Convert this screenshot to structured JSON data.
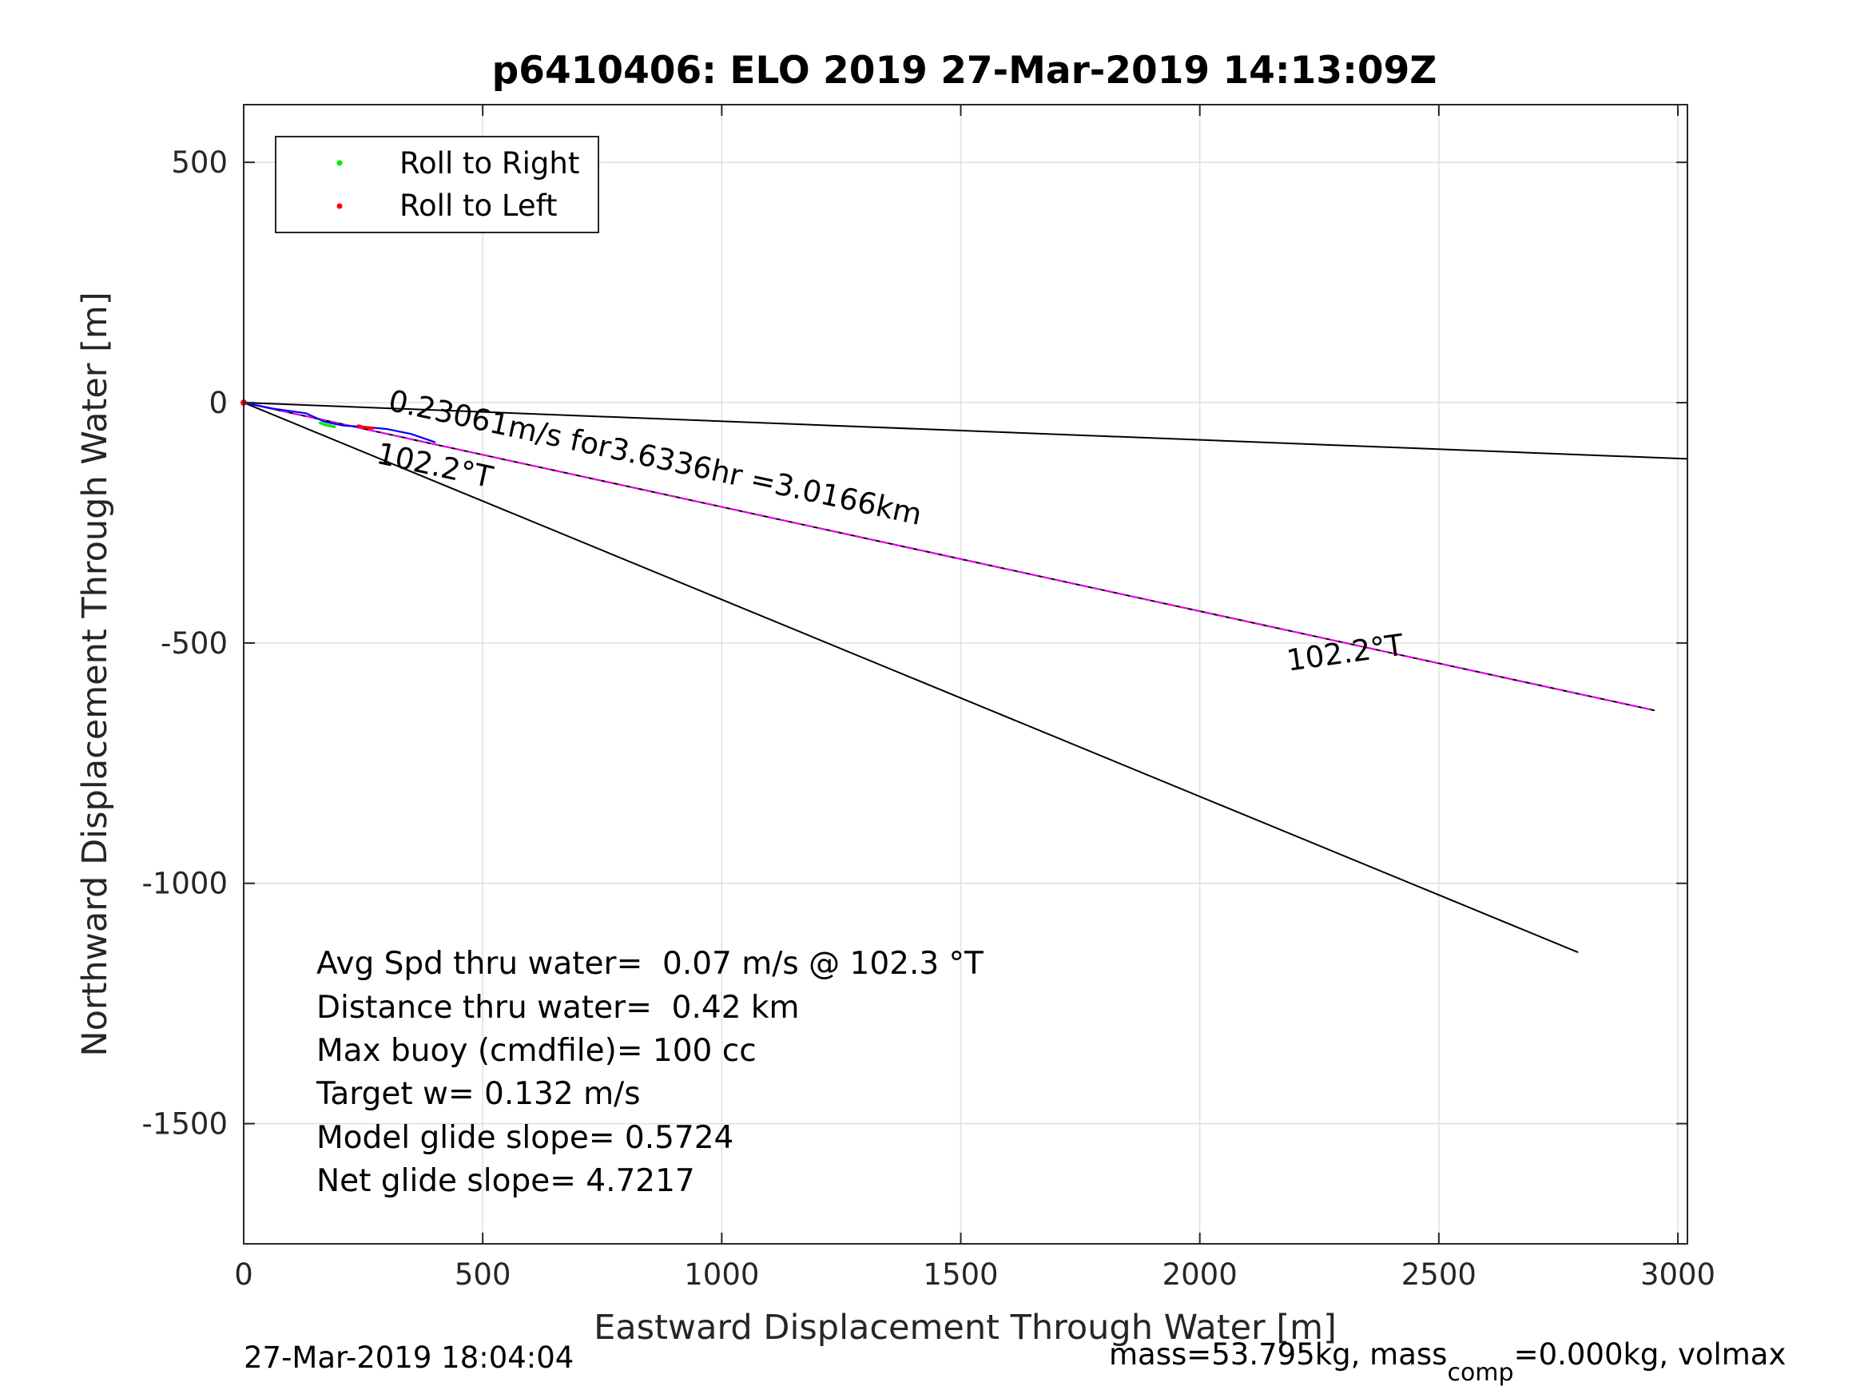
{
  "chart_data": {
    "type": "line",
    "title": "p6410406: ELO 2019 27-Mar-2019 14:13:09Z",
    "xlabel": "Eastward Displacement Through Water [m]",
    "ylabel": "Northward Displacement Through Water [m]",
    "xlim": [
      0,
      3020
    ],
    "ylim": [
      -1750,
      620
    ],
    "grid": true,
    "x_ticks": [
      0,
      500,
      1000,
      1500,
      2000,
      2500,
      3000
    ],
    "x_tick_labels": [
      "0",
      "500",
      "1000",
      "1500",
      "2000",
      "2500",
      "3000"
    ],
    "y_ticks": [
      500,
      0,
      -500,
      -1000,
      -1500
    ],
    "y_tick_labels": [
      "500",
      "0",
      "-500",
      "-1000",
      "-1500"
    ],
    "legend": {
      "placement": "top-left",
      "entries": [
        {
          "label": "Roll to Right",
          "color": "#00ee00"
        },
        {
          "label": "Roll to Left",
          "color": "#ff0000"
        }
      ]
    },
    "series": [
      {
        "color": "#000000",
        "x": [
          0,
          3020
        ],
        "y": [
          0,
          -117
        ]
      },
      {
        "color": "#000000",
        "x": [
          0,
          2790
        ],
        "y": [
          0,
          -1143
        ]
      },
      {
        "color": "#000000",
        "x": [
          0,
          2950
        ],
        "y": [
          0,
          -640
        ]
      },
      {
        "color": "#ee00ee",
        "x": [
          0,
          2950
        ],
        "y": [
          0,
          -640
        ]
      },
      {
        "color": "#0000ff",
        "x": [
          0,
          60,
          130,
          170,
          210,
          250,
          300,
          350,
          400
        ],
        "y": [
          0,
          -12,
          -22,
          -40,
          -48,
          -50,
          -55,
          -65,
          -82
        ]
      },
      {
        "color": "#00ee00",
        "x": [
          160,
          170,
          180,
          190
        ],
        "y": [
          -42,
          -46,
          -48,
          -50
        ]
      },
      {
        "color": "#ff0000",
        "x": [
          240,
          250,
          260,
          270
        ],
        "y": [
          -48,
          -51,
          -52,
          -53
        ]
      }
    ],
    "annotations": [
      {
        "text": "0.23061m/s for3.6336hr =3.0166km",
        "x": 300,
        "y": -15,
        "angle_deg": -12.2
      },
      {
        "text": "102.2°T",
        "x": 275,
        "y": -125,
        "angle_deg": -12.2
      },
      {
        "text": "102.2°T",
        "x": 2185,
        "y": -558,
        "angle_deg": 8
      },
      {
        "text": "Avg Spd thru water=  0.07 m/s @ 102.3 °T"
      },
      {
        "text": "Distance thru water=  0.42 km"
      },
      {
        "text": "Max buoy (cmdfile)= 100 cc"
      },
      {
        "text": "Target w= 0.132 m/s"
      },
      {
        "text": "Model glide slope= 0.5724"
      },
      {
        "text": "Net glide slope= 4.7217"
      }
    ]
  },
  "footer": {
    "timestamp": "27-Mar-2019 18:04:04",
    "mass_prefix": "mass=53.795kg, mass",
    "mass_sub": "comp",
    "mass_suffix": "=0.000kg, volmax"
  }
}
